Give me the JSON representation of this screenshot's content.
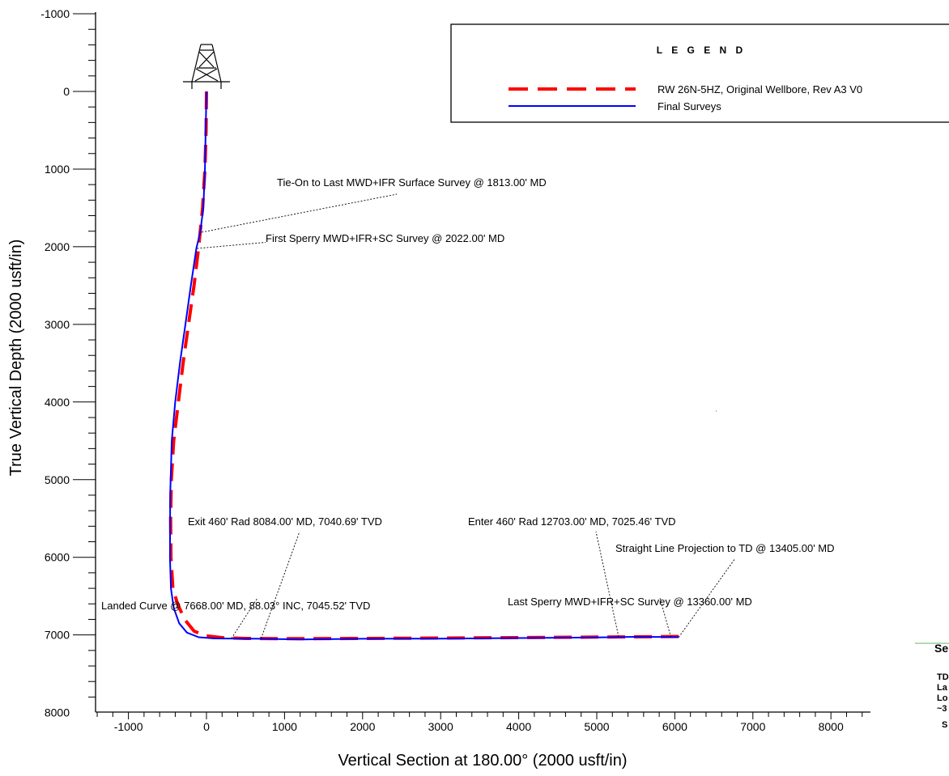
{
  "chart_data": {
    "type": "line",
    "xlabel": "Vertical Section at 180.00° (2000 usft/in)",
    "ylabel": "True Vertical Depth (2000 usft/in)",
    "xlim": [
      -1400,
      8400
    ],
    "ylim": [
      -1000,
      8000
    ],
    "y_inverted": true,
    "x_ticks": [
      -1000,
      0,
      1000,
      2000,
      3000,
      4000,
      5000,
      6000,
      7000,
      8000
    ],
    "y_ticks": [
      -1000,
      0,
      1000,
      2000,
      3000,
      4000,
      5000,
      6000,
      7000,
      8000
    ],
    "x_minor_step": 200,
    "y_minor_step": 200,
    "legend": {
      "title": "L E G E N D",
      "placement": "top-right"
    },
    "series": [
      {
        "name": "RW 26N-5HZ, Original Wellbore, Rev A3 V0",
        "color": "#ff0000",
        "style": "dashed",
        "x": [
          0,
          -5,
          -20,
          -50,
          -100,
          -160,
          -230,
          -300,
          -360,
          -420,
          -450,
          -460,
          -455,
          -430,
          -370,
          -280,
          -160,
          -20,
          200,
          500,
          1000,
          2000,
          3000,
          4000,
          5000,
          5500,
          6000,
          6080
        ],
        "y": [
          0,
          500,
          1000,
          1500,
          2000,
          2500,
          3000,
          3500,
          4000,
          4500,
          5000,
          5500,
          6000,
          6400,
          6600,
          6800,
          6950,
          7010,
          7035,
          7045,
          7048,
          7045,
          7040,
          7035,
          7028,
          7025,
          7020,
          7018
        ]
      },
      {
        "name": "Final Surveys",
        "color": "#0000ff",
        "style": "solid",
        "x": [
          0,
          -10,
          -20,
          -40,
          -80,
          -130,
          -200,
          -270,
          -340,
          -400,
          -445,
          -465,
          -468,
          -455,
          -420,
          -350,
          -250,
          -100,
          100,
          300,
          700,
          1200,
          2000,
          3000,
          4000,
          5000,
          5500,
          6000,
          6050
        ],
        "y": [
          0,
          500,
          1000,
          1500,
          1813,
          2022,
          2500,
          3000,
          3500,
          4000,
          4500,
          5200,
          6000,
          6400,
          6650,
          6850,
          6970,
          7030,
          7045,
          7046,
          7050,
          7058,
          7050,
          7047,
          7040,
          7032,
          7025,
          7028,
          7030
        ]
      }
    ],
    "annotations": [
      {
        "text": "Tie-On to Last MWD+IFR Surface Survey @ 1813.00' MD",
        "point": [
          -60,
          1813
        ]
      },
      {
        "text": "First Sperry MWD+IFR+SC Survey @ 2022.00' MD",
        "point": [
          -120,
          2022
        ]
      },
      {
        "text": "Exit 460' Rad 8084.00' MD, 7040.69' TVD",
        "point": [
          700,
          7045
        ]
      },
      {
        "text": "Enter 460' Rad 12703.00' MD, 7025.46' TVD",
        "point": [
          5280,
          7025
        ]
      },
      {
        "text": "Straight Line Projection to TD @ 13405.00' MD",
        "point": [
          6050,
          7030
        ]
      },
      {
        "text": "Landed Curve @ 7668.00' MD, 88.03° INC, 7045.52' TVD",
        "point": [
          320,
          7045
        ]
      },
      {
        "text": "Last Sperry MWD+IFR+SC Survey @ 13360.00' MD",
        "point": [
          5950,
          7030
        ]
      }
    ],
    "clipped_box": {
      "title": "Se",
      "lines": [
        "TD",
        "La",
        "Lo",
        "~3",
        "S"
      ]
    }
  }
}
